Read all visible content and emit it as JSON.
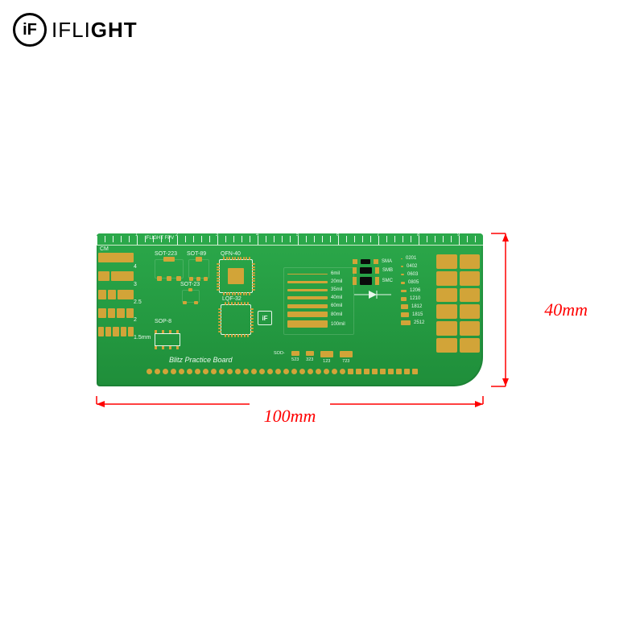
{
  "brand": {
    "mark": "iF",
    "name_thin": "IFLI",
    "name_bold": "GHT"
  },
  "dimensions": {
    "width_label": "100mm",
    "height_label": "40mm",
    "arrow_color": "#ff0000"
  },
  "pcb": {
    "bg_from": "#2ba84a",
    "bg_to": "#1f8e3a",
    "gold": "#d2a438",
    "silk": "#e9f7ec",
    "title": "Blitz Practice Board",
    "cm_label": "CM",
    "iflight_top": "IFLIGHT FPV",
    "ruler_majors": [
      1,
      2,
      3,
      4,
      5,
      6,
      7,
      8,
      9
    ],
    "left_nums": [
      "4",
      "3",
      "2.5",
      "2",
      "1.5mm"
    ],
    "top_labels": {
      "sot223": "SOT-223",
      "sot89": "SOT-89",
      "qfn40": "QFN-40",
      "sot23": "SOT-23",
      "lqf32": "LQF-32",
      "sop8": "SOP-8"
    },
    "trace_widths": [
      "6mil",
      "20mil",
      "35mil",
      "40mil",
      "60mil",
      "80mil",
      "100mil"
    ],
    "diode_types": [
      "SMA",
      "SMB",
      "SMC"
    ],
    "smd_sizes": [
      {
        "n": "0201",
        "w": 2,
        "h": 1
      },
      {
        "n": "0402",
        "w": 3,
        "h": 1.5
      },
      {
        "n": "0603",
        "w": 4,
        "h": 2
      },
      {
        "n": "0805",
        "w": 5,
        "h": 3
      },
      {
        "n": "1206",
        "w": 7,
        "h": 3
      },
      {
        "n": "1210",
        "w": 7,
        "h": 5
      },
      {
        "n": "1812",
        "w": 9,
        "h": 6
      },
      {
        "n": "1815",
        "w": 10,
        "h": 6
      },
      {
        "n": "2512",
        "w": 12,
        "h": 6
      }
    ],
    "sod_row": [
      "SOD-",
      "523",
      "323",
      "123",
      "723"
    ],
    "mini_logo": "iF"
  }
}
